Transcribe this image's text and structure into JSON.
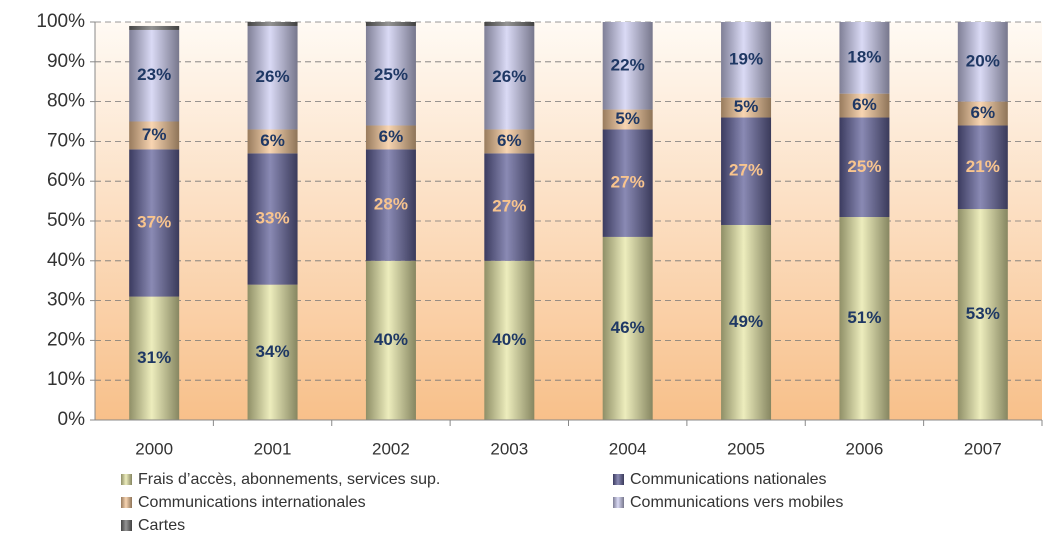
{
  "chart_data": {
    "type": "stacked_bar",
    "categories": [
      "2000",
      "2001",
      "2002",
      "2003",
      "2004",
      "2005",
      "2006",
      "2007"
    ],
    "series": [
      {
        "name": "Frais d’accès, abonnements, services sup.",
        "color": "#e4e49a",
        "label_color": "#1f3864",
        "values": [
          31,
          34,
          40,
          40,
          46,
          49,
          51,
          53
        ],
        "value_labels": [
          "31%",
          "34%",
          "40%",
          "40%",
          "46%",
          "49%",
          "51%",
          "53%"
        ]
      },
      {
        "name": "Communications nationales",
        "color": "#4b4b8c",
        "label_color": "#f8c48e",
        "values": [
          37,
          33,
          28,
          27,
          27,
          27,
          25,
          21
        ],
        "value_labels": [
          "37%",
          "33%",
          "28%",
          "27%",
          "27%",
          "27%",
          "25%",
          "21%"
        ]
      },
      {
        "name": "Communications internationales",
        "color": "#f4bf88",
        "label_color": "#1f3864",
        "values": [
          7,
          6,
          6,
          6,
          5,
          5,
          6,
          6
        ],
        "value_labels": [
          "7%",
          "6%",
          "6%",
          "6%",
          "5%",
          "5%",
          "6%",
          "6%"
        ]
      },
      {
        "name": "Communications vers mobiles",
        "color": "#c6c6f0",
        "label_color": "#1f3864",
        "values": [
          23,
          26,
          25,
          26,
          22,
          19,
          18,
          20
        ],
        "value_labels": [
          "23%",
          "26%",
          "25%",
          "26%",
          "22%",
          "19%",
          "18%",
          "20%"
        ]
      },
      {
        "name": "Cartes",
        "color": "#5a5a5a",
        "values": [
          1,
          1,
          1,
          1,
          1,
          1,
          1,
          1
        ]
      }
    ],
    "ylim": [
      0,
      100
    ],
    "yticks": [
      {
        "value": 0,
        "label": "0%"
      },
      {
        "value": 10,
        "label": "10%"
      },
      {
        "value": 20,
        "label": "20%"
      },
      {
        "value": 30,
        "label": "30%"
      },
      {
        "value": 40,
        "label": "40%"
      },
      {
        "value": 50,
        "label": "50%"
      },
      {
        "value": 60,
        "label": "60%"
      },
      {
        "value": 70,
        "label": "70%"
      },
      {
        "value": 80,
        "label": "80%"
      },
      {
        "value": 90,
        "label": "90%"
      },
      {
        "value": 100,
        "label": "100%"
      }
    ],
    "grid": true,
    "legend": "bottom"
  }
}
